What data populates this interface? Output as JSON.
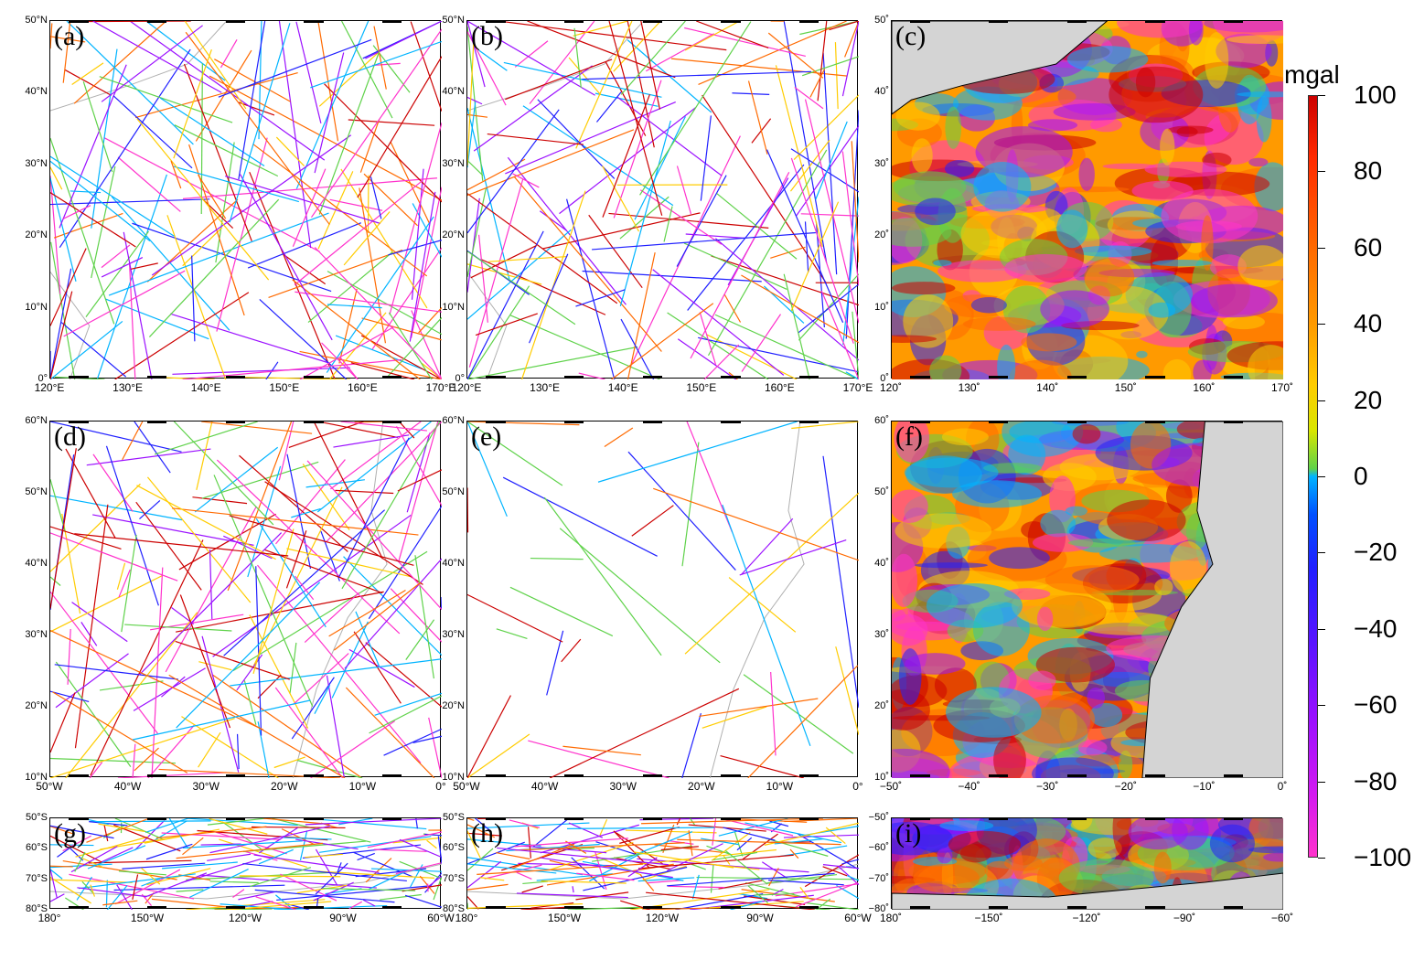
{
  "figure": {
    "colorbar": {
      "unit": "mgal",
      "ticks": [
        "100",
        "80",
        "60",
        "40",
        "20",
        "0",
        "−20",
        "−40",
        "−60",
        "−80",
        "−100"
      ],
      "colors": [
        "#cc0000",
        "#ff6a00",
        "#ffcc00",
        "#5fd24a",
        "#00b4ff",
        "#2020ff",
        "#9b10ff",
        "#ff33cc"
      ]
    },
    "panels": [
      {
        "id": "a",
        "label": "(a)",
        "kind": "tracks",
        "region": "northwest-pacific",
        "yticks": [
          "50°N",
          "40°N",
          "30°N",
          "20°N",
          "10°N",
          "0°"
        ],
        "xticks": [
          "120°E",
          "130°E",
          "140°E",
          "150°E",
          "160°E",
          "170°E"
        ]
      },
      {
        "id": "b",
        "label": "(b)",
        "kind": "tracks",
        "region": "northwest-pacific",
        "yticks": [
          "50°N",
          "40°N",
          "30°N",
          "20°N",
          "10°N",
          "0°"
        ],
        "xticks": [
          "120°E",
          "130°E",
          "140°E",
          "150°E",
          "160°E",
          "170°E"
        ]
      },
      {
        "id": "c",
        "label": "(c)",
        "kind": "grid",
        "region": "northwest-pacific",
        "yticks": [
          "50˚",
          "40˚",
          "30˚",
          "20˚",
          "10˚",
          "0˚"
        ],
        "xticks": [
          "120˚",
          "130˚",
          "140˚",
          "150˚",
          "160˚",
          "170˚"
        ]
      },
      {
        "id": "d",
        "label": "(d)",
        "kind": "tracks",
        "region": "north-atlantic",
        "yticks": [
          "60°N",
          "50°N",
          "40°N",
          "30°N",
          "20°N",
          "10°N"
        ],
        "xticks": [
          "50°W",
          "40°W",
          "30°W",
          "20°W",
          "10°W",
          "0°"
        ]
      },
      {
        "id": "e",
        "label": "(e)",
        "kind": "tracks",
        "region": "north-atlantic",
        "yticks": [
          "60°N",
          "50°N",
          "40°N",
          "30°N",
          "20°N",
          "10°N"
        ],
        "xticks": [
          "50°W",
          "40°W",
          "30°W",
          "20°W",
          "10°W",
          "0°"
        ]
      },
      {
        "id": "f",
        "label": "(f)",
        "kind": "grid",
        "region": "north-atlantic",
        "yticks": [
          "60˚",
          "50˚",
          "40˚",
          "30˚",
          "20˚",
          "10˚"
        ],
        "xticks": [
          "−50˚",
          "−40˚",
          "−30˚",
          "−20˚",
          "−10˚",
          "0˚"
        ]
      },
      {
        "id": "g",
        "label": "(g)",
        "kind": "tracks",
        "region": "southern-ocean",
        "yticks": [
          "50°S",
          "60°S",
          "70°S",
          "80°S"
        ],
        "xticks": [
          "180°",
          "150°W",
          "120°W",
          "90°W",
          "60°W"
        ]
      },
      {
        "id": "h",
        "label": "(h)",
        "kind": "tracks",
        "region": "southern-ocean",
        "yticks": [
          "50°S",
          "60°S",
          "70°S",
          "80°S"
        ],
        "xticks": [
          "180°",
          "150°W",
          "120°W",
          "90°W",
          "60°W"
        ]
      },
      {
        "id": "i",
        "label": "(i)",
        "kind": "grid",
        "region": "southern-ocean",
        "yticks": [
          "−50˚",
          "−60˚",
          "−70˚",
          "−80˚"
        ],
        "xticks": [
          "180˚",
          "−150˚",
          "−120˚",
          "−90˚",
          "−60˚"
        ]
      }
    ]
  }
}
